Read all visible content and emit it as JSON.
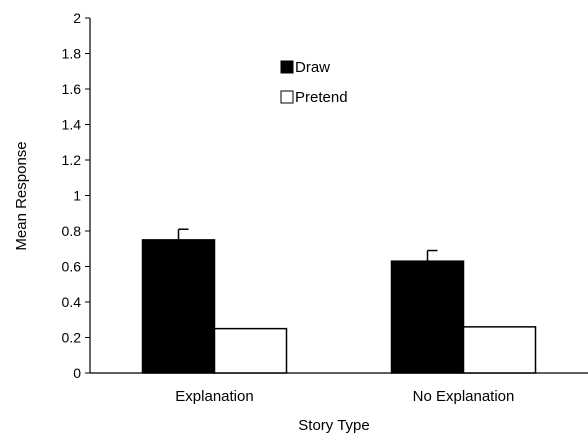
{
  "chart_data": {
    "type": "bar",
    "title": "",
    "xlabel": "Story Type",
    "ylabel": "Mean Response",
    "categories": [
      "Explanation",
      "No Explanation"
    ],
    "ylim": [
      0,
      2
    ],
    "yticks": [
      "0",
      "0.2",
      "0.4",
      "0.6",
      "0.8",
      "1",
      "1.2",
      "1.4",
      "1.6",
      "1.8",
      "2"
    ],
    "grid": false,
    "legend_position": "top-center",
    "series": [
      {
        "name": "Draw",
        "values": [
          0.75,
          0.63
        ],
        "error": [
          0.06,
          0.06
        ],
        "fill": "#000000"
      },
      {
        "name": "Pretend",
        "values": [
          0.25,
          0.26
        ],
        "error": [
          null,
          null
        ],
        "fill": "#ffffff"
      }
    ]
  }
}
